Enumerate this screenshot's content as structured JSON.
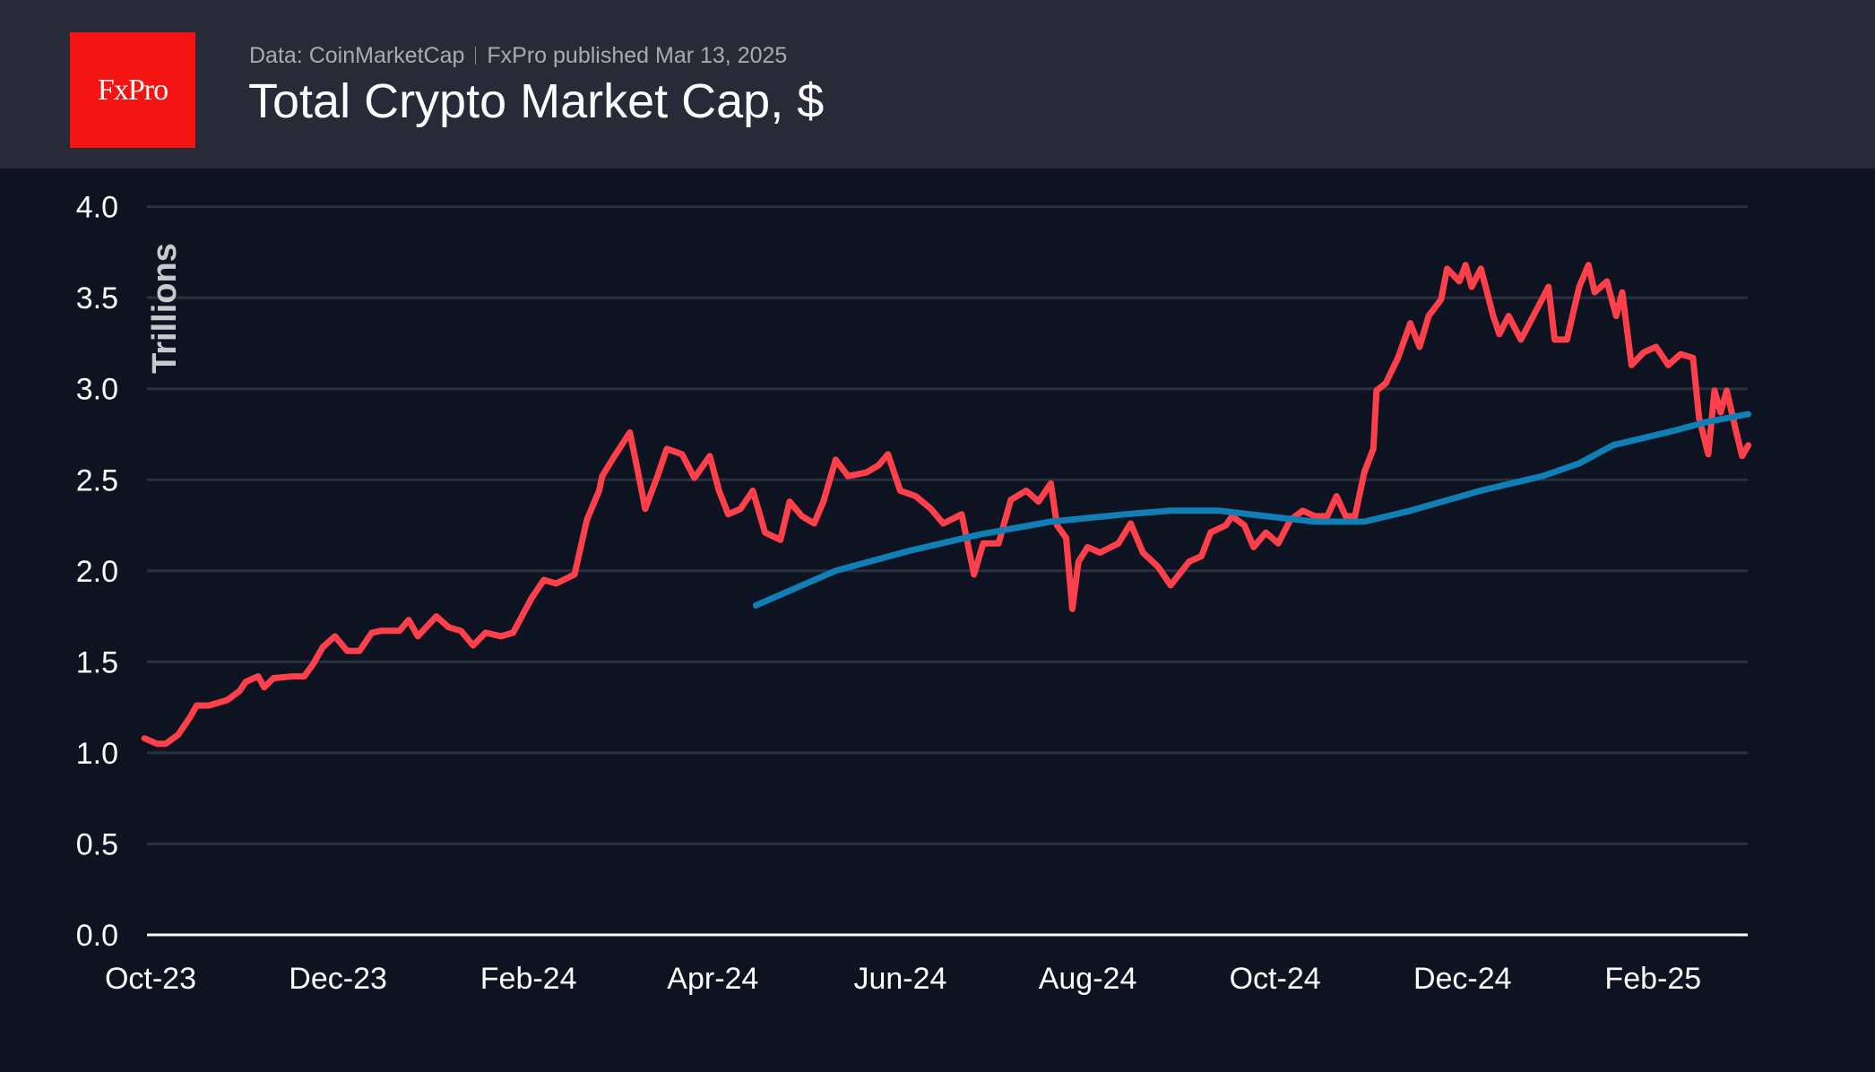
{
  "header": {
    "logo_text": "FxPro",
    "source": "Data: CoinMarketCap",
    "published": "FxPro published Mar 13, 2025",
    "title": "Total Crypto Market Cap, $"
  },
  "colors": {
    "background": "#0d1320",
    "header": "#282a37",
    "logo": "#f41414",
    "price": "#ff3f4a",
    "moving_average": "#0f7fb5",
    "grid": "#2a3040"
  },
  "chart_data": {
    "type": "line",
    "title": "Total Crypto Market Cap, $",
    "ylabel": "Trillions",
    "ylim": [
      0,
      4
    ],
    "yticks": [
      0.0,
      0.5,
      1.0,
      1.5,
      2.0,
      2.5,
      3.0,
      3.5,
      4.0
    ],
    "ytick_labels": [
      "0.0",
      "0.5",
      "1.0",
      "1.5",
      "2.0",
      "2.5",
      "3.0",
      "3.5",
      "4.0"
    ],
    "xticks": [
      "2023-10-01",
      "2023-12-01",
      "2024-02-01",
      "2024-04-01",
      "2024-06-01",
      "2024-08-01",
      "2024-10-01",
      "2024-12-01",
      "2025-02-01"
    ],
    "xtick_labels": [
      "Oct-23",
      "Dec-23",
      "Feb-24",
      "Apr-24",
      "Jun-24",
      "Aug-24",
      "Oct-24",
      "Dec-24",
      "Feb-25"
    ],
    "grid": true,
    "series": [
      {
        "color": "#ff3f4a",
        "points": [
          [
            "2023-09-29",
            1.08
          ],
          [
            "2023-10-03",
            1.05
          ],
          [
            "2023-10-06",
            1.05
          ],
          [
            "2023-10-10",
            1.1
          ],
          [
            "2023-10-14",
            1.2
          ],
          [
            "2023-10-16",
            1.26
          ],
          [
            "2023-10-20",
            1.26
          ],
          [
            "2023-10-26",
            1.29
          ],
          [
            "2023-10-30",
            1.34
          ],
          [
            "2023-11-01",
            1.39
          ],
          [
            "2023-11-05",
            1.42
          ],
          [
            "2023-11-07",
            1.36
          ],
          [
            "2023-11-10",
            1.41
          ],
          [
            "2023-11-16",
            1.42
          ],
          [
            "2023-11-20",
            1.42
          ],
          [
            "2023-11-23",
            1.49
          ],
          [
            "2023-11-26",
            1.58
          ],
          [
            "2023-11-30",
            1.64
          ],
          [
            "2023-12-04",
            1.56
          ],
          [
            "2023-12-08",
            1.56
          ],
          [
            "2023-12-12",
            1.66
          ],
          [
            "2023-12-15",
            1.67
          ],
          [
            "2023-12-21",
            1.67
          ],
          [
            "2023-12-24",
            1.73
          ],
          [
            "2023-12-27",
            1.64
          ],
          [
            "2024-01-02",
            1.75
          ],
          [
            "2024-01-06",
            1.69
          ],
          [
            "2024-01-10",
            1.67
          ],
          [
            "2024-01-14",
            1.59
          ],
          [
            "2024-01-18",
            1.66
          ],
          [
            "2024-01-23",
            1.64
          ],
          [
            "2024-01-27",
            1.66
          ],
          [
            "2024-02-02",
            1.85
          ],
          [
            "2024-02-06",
            1.95
          ],
          [
            "2024-02-10",
            1.93
          ],
          [
            "2024-02-16",
            1.98
          ],
          [
            "2024-02-20",
            2.28
          ],
          [
            "2024-02-24",
            2.44
          ],
          [
            "2024-02-25",
            2.52
          ],
          [
            "2024-02-29",
            2.63
          ],
          [
            "2024-03-05",
            2.76
          ],
          [
            "2024-03-08",
            2.51
          ],
          [
            "2024-03-10",
            2.34
          ],
          [
            "2024-03-14",
            2.52
          ],
          [
            "2024-03-17",
            2.67
          ],
          [
            "2024-03-22",
            2.64
          ],
          [
            "2024-03-26",
            2.51
          ],
          [
            "2024-03-31",
            2.63
          ],
          [
            "2024-04-03",
            2.44
          ],
          [
            "2024-04-06",
            2.31
          ],
          [
            "2024-04-10",
            2.34
          ],
          [
            "2024-04-14",
            2.44
          ],
          [
            "2024-04-18",
            2.21
          ],
          [
            "2024-04-23",
            2.17
          ],
          [
            "2024-04-26",
            2.38
          ],
          [
            "2024-04-30",
            2.3
          ],
          [
            "2024-05-04",
            2.26
          ],
          [
            "2024-05-07",
            2.38
          ],
          [
            "2024-05-11",
            2.61
          ],
          [
            "2024-05-15",
            2.52
          ],
          [
            "2024-05-21",
            2.54
          ],
          [
            "2024-05-25",
            2.58
          ],
          [
            "2024-05-28",
            2.64
          ],
          [
            "2024-06-01",
            2.44
          ],
          [
            "2024-06-06",
            2.41
          ],
          [
            "2024-06-11",
            2.34
          ],
          [
            "2024-06-15",
            2.26
          ],
          [
            "2024-06-21",
            2.31
          ],
          [
            "2024-06-25",
            1.98
          ],
          [
            "2024-06-28",
            2.15
          ],
          [
            "2024-07-03",
            2.15
          ],
          [
            "2024-07-07",
            2.39
          ],
          [
            "2024-07-12",
            2.44
          ],
          [
            "2024-07-16",
            2.38
          ],
          [
            "2024-07-20",
            2.48
          ],
          [
            "2024-07-22",
            2.25
          ],
          [
            "2024-07-25",
            2.18
          ],
          [
            "2024-07-27",
            1.79
          ],
          [
            "2024-07-29",
            2.05
          ],
          [
            "2024-08-01",
            2.13
          ],
          [
            "2024-08-05",
            2.1
          ],
          [
            "2024-08-11",
            2.15
          ],
          [
            "2024-08-15",
            2.26
          ],
          [
            "2024-08-19",
            2.1
          ],
          [
            "2024-08-24",
            2.02
          ],
          [
            "2024-08-28",
            1.92
          ],
          [
            "2024-09-03",
            2.05
          ],
          [
            "2024-09-07",
            2.08
          ],
          [
            "2024-09-10",
            2.21
          ],
          [
            "2024-09-15",
            2.25
          ],
          [
            "2024-09-17",
            2.3
          ],
          [
            "2024-09-21",
            2.25
          ],
          [
            "2024-09-24",
            2.13
          ],
          [
            "2024-09-28",
            2.21
          ],
          [
            "2024-10-02",
            2.15
          ],
          [
            "2024-10-06",
            2.28
          ],
          [
            "2024-10-10",
            2.33
          ],
          [
            "2024-10-14",
            2.3
          ],
          [
            "2024-10-18",
            2.3
          ],
          [
            "2024-10-21",
            2.41
          ],
          [
            "2024-10-24",
            2.3
          ],
          [
            "2024-10-27",
            2.3
          ],
          [
            "2024-10-30",
            2.54
          ],
          [
            "2024-11-02",
            2.67
          ],
          [
            "2024-11-03",
            2.99
          ],
          [
            "2024-11-06",
            3.03
          ],
          [
            "2024-11-10",
            3.17
          ],
          [
            "2024-11-14",
            3.36
          ],
          [
            "2024-11-17",
            3.23
          ],
          [
            "2024-11-20",
            3.4
          ],
          [
            "2024-11-24",
            3.49
          ],
          [
            "2024-11-26",
            3.66
          ],
          [
            "2024-11-30",
            3.59
          ],
          [
            "2024-12-02",
            3.68
          ],
          [
            "2024-12-04",
            3.56
          ],
          [
            "2024-12-07",
            3.66
          ],
          [
            "2024-12-11",
            3.4
          ],
          [
            "2024-12-13",
            3.3
          ],
          [
            "2024-12-16",
            3.4
          ],
          [
            "2024-12-20",
            3.27
          ],
          [
            "2024-12-25",
            3.43
          ],
          [
            "2024-12-29",
            3.56
          ],
          [
            "2024-12-31",
            3.27
          ],
          [
            "2025-01-04",
            3.27
          ],
          [
            "2025-01-08",
            3.56
          ],
          [
            "2025-01-11",
            3.68
          ],
          [
            "2025-01-13",
            3.53
          ],
          [
            "2025-01-17",
            3.59
          ],
          [
            "2025-01-20",
            3.4
          ],
          [
            "2025-01-22",
            3.53
          ],
          [
            "2025-01-25",
            3.13
          ],
          [
            "2025-01-29",
            3.2
          ],
          [
            "2025-02-02",
            3.23
          ],
          [
            "2025-02-06",
            3.13
          ],
          [
            "2025-02-10",
            3.19
          ],
          [
            "2025-02-14",
            3.17
          ],
          [
            "2025-02-16",
            2.84
          ],
          [
            "2025-02-19",
            2.64
          ],
          [
            "2025-02-21",
            2.99
          ],
          [
            "2025-02-23",
            2.87
          ],
          [
            "2025-02-25",
            2.99
          ],
          [
            "2025-02-28",
            2.77
          ],
          [
            "2025-03-02",
            2.63
          ],
          [
            "2025-03-04",
            2.69
          ]
        ]
      },
      {
        "color": "#0f7fb5",
        "points": [
          [
            "2024-04-15",
            1.81
          ],
          [
            "2024-05-11",
            2.0
          ],
          [
            "2024-06-04",
            2.11
          ],
          [
            "2024-06-27",
            2.2
          ],
          [
            "2024-07-20",
            2.27
          ],
          [
            "2024-08-13",
            2.31
          ],
          [
            "2024-08-28",
            2.33
          ],
          [
            "2024-09-13",
            2.33
          ],
          [
            "2024-09-28",
            2.3
          ],
          [
            "2024-10-14",
            2.27
          ],
          [
            "2024-10-30",
            2.27
          ],
          [
            "2024-11-14",
            2.33
          ],
          [
            "2024-12-07",
            2.44
          ],
          [
            "2024-12-27",
            2.52
          ],
          [
            "2025-01-08",
            2.59
          ],
          [
            "2025-01-19",
            2.69
          ],
          [
            "2025-02-08",
            2.77
          ],
          [
            "2025-02-19",
            2.82
          ],
          [
            "2025-03-04",
            2.86
          ]
        ]
      }
    ]
  }
}
